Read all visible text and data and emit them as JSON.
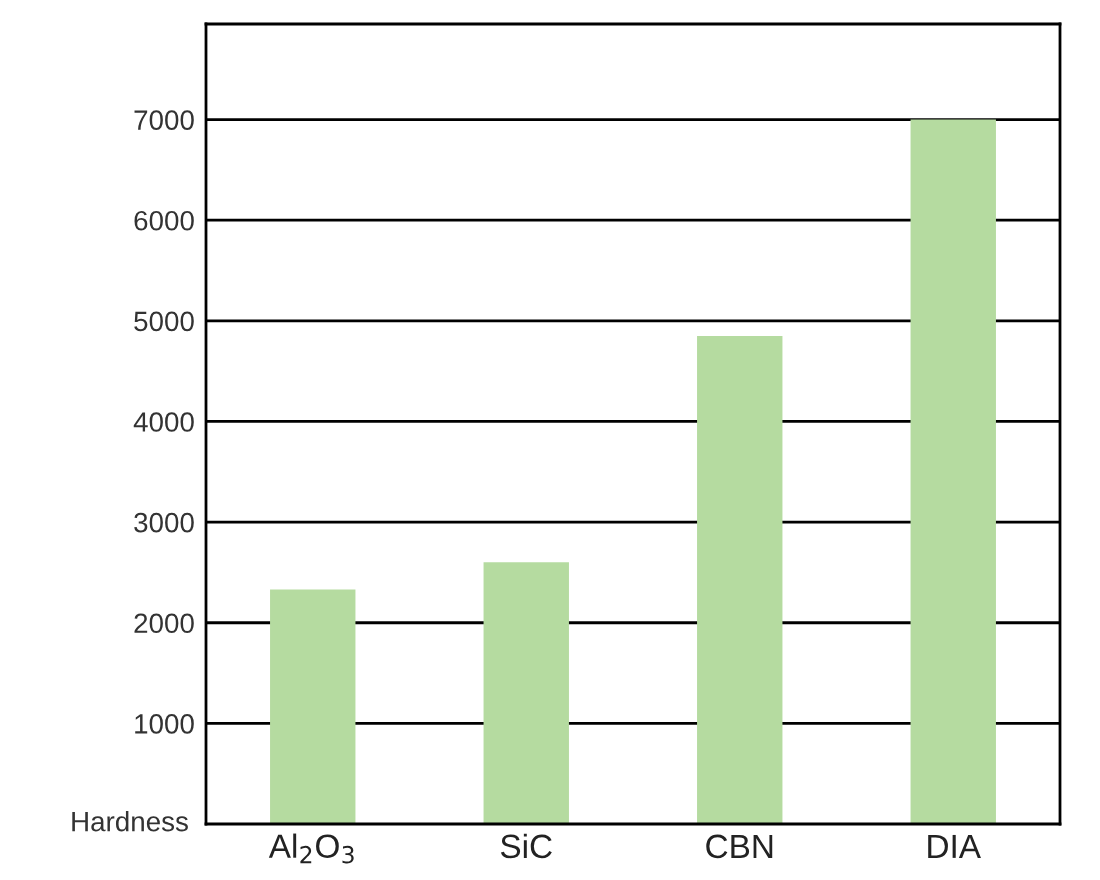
{
  "chart_data": {
    "type": "bar",
    "ylabel": "Hardness",
    "categories": [
      "Al$_{2}$O$_{3}$",
      "SiC",
      "CBN",
      "DIA"
    ],
    "values": [
      2330,
      2600,
      4850,
      7000
    ],
    "color": "#b5dba0",
    "ylim": [
      0,
      7950
    ],
    "yticks": [
      1000,
      2000,
      3000,
      4000,
      5000,
      6000,
      7000
    ],
    "grid": "y"
  }
}
